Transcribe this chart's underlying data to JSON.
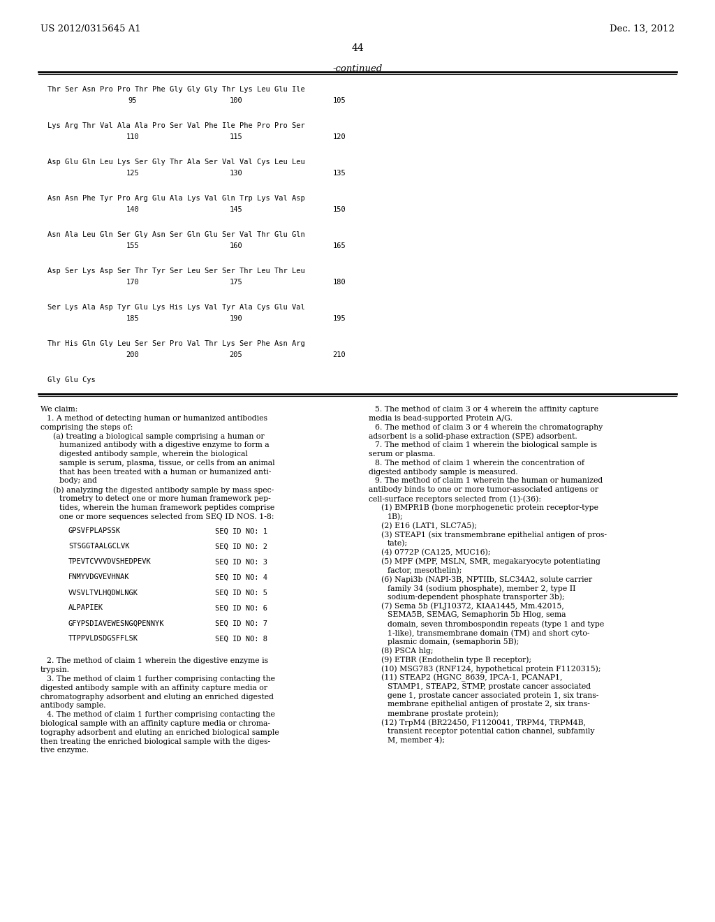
{
  "background_color": "#ffffff",
  "header_left": "US 2012/0315645 A1",
  "header_right": "Dec. 13, 2012",
  "page_number": "44",
  "continued_label": "-continued",
  "sequence_lines": [
    [
      "Thr Ser Asn Pro Pro Thr Phe Gly Gly Gly Thr Lys Leu Glu Ile",
      "95",
      "100",
      "105"
    ],
    [
      "Lys Arg Thr Val Ala Ala Pro Ser Val Phe Ile Phe Pro Pro Ser",
      "110",
      "115",
      "120"
    ],
    [
      "Asp Glu Gln Leu Lys Ser Gly Thr Ala Ser Val Val Cys Leu Leu",
      "125",
      "130",
      "135"
    ],
    [
      "Asn Asn Phe Tyr Pro Arg Glu Ala Lys Val Gln Trp Lys Val Asp",
      "140",
      "145",
      "150"
    ],
    [
      "Asn Ala Leu Gln Ser Gly Asn Ser Gln Glu Ser Val Thr Glu Gln",
      "155",
      "160",
      "165"
    ],
    [
      "Asp Ser Lys Asp Ser Thr Tyr Ser Leu Ser Ser Thr Leu Thr Leu",
      "170",
      "175",
      "180"
    ],
    [
      "Ser Lys Ala Asp Tyr Glu Lys His Lys Val Tyr Ala Cys Glu Val",
      "185",
      "190",
      "195"
    ],
    [
      "Thr His Gln Gly Leu Ser Ser Pro Val Thr Lys Ser Phe Asn Arg",
      "200",
      "205",
      "210"
    ],
    [
      "Gly Glu Cys",
      "",
      "",
      ""
    ]
  ],
  "seq_table": [
    [
      "GPSVFPLAPSSK",
      "SEQ ID NO: 1"
    ],
    [
      "STSGGTAALGCLVK",
      "SEQ ID NO: 2"
    ],
    [
      "TPEVTCVVVDVSHEDPEVK",
      "SEQ ID NO: 3"
    ],
    [
      "FNMYVDGVEVHNAK",
      "SEQ ID NO: 4"
    ],
    [
      "VVSVLTVLHQDWLNGK",
      "SEQ ID NO: 5"
    ],
    [
      "ALPAPIEK",
      "SEQ ID NO: 6"
    ],
    [
      "GFYPSDIAVEWESNGQPENNYK",
      "SEQ ID NO: 7"
    ],
    [
      "TTPPVLDSDGSFFLSK",
      "SEQ ID NO: 8"
    ]
  ],
  "claims_left": [
    [
      "indent0",
      "We claim:"
    ],
    [
      "indent1",
      "1. A method of detecting human or humanized antibodies"
    ],
    [
      "indent0",
      "comprising the steps of:"
    ],
    [
      "indent2",
      "(a) treating a biological sample comprising a human or"
    ],
    [
      "indent3",
      "humanized antibody with a digestive enzyme to form a"
    ],
    [
      "indent3",
      "digested antibody sample, wherein the biological"
    ],
    [
      "indent3",
      "sample is serum, plasma, tissue, or cells from an animal"
    ],
    [
      "indent3",
      "that has been treated with a human or humanized anti-"
    ],
    [
      "indent3",
      "body; and"
    ],
    [
      "indent2",
      "(b) analyzing the digested antibody sample by mass spec-"
    ],
    [
      "indent3",
      "trometry to detect one or more human framework pep-"
    ],
    [
      "indent3",
      "tides, wherein the human framework peptides comprise"
    ],
    [
      "indent3",
      "one or more sequences selected from SEQ ID NOS. 1-8:"
    ]
  ],
  "claims_bottom_left": [
    [
      "indent1",
      "2. The method of claim 1 wherein the digestive enzyme is"
    ],
    [
      "indent0",
      "trypsin."
    ],
    [
      "indent1",
      "3. The method of claim 1 further comprising contacting the"
    ],
    [
      "indent0",
      "digested antibody sample with an affinity capture media or"
    ],
    [
      "indent0",
      "chromatography adsorbent and eluting an enriched digested"
    ],
    [
      "indent0",
      "antibody sample."
    ],
    [
      "indent1",
      "4. The method of claim 1 further comprising contacting the"
    ],
    [
      "indent0",
      "biological sample with an affinity capture media or chroma-"
    ],
    [
      "indent0",
      "tography adsorbent and eluting an enriched biological sample"
    ],
    [
      "indent0",
      "then treating the enriched biological sample with the diges-"
    ],
    [
      "indent0",
      "tive enzyme."
    ]
  ],
  "claims_right": [
    [
      "indent1",
      "5. The method of claim 3 or 4 wherein the affinity capture"
    ],
    [
      "indent0",
      "media is bead-supported Protein A/G."
    ],
    [
      "indent1",
      "6. The method of claim 3 or 4 wherein the chromatography"
    ],
    [
      "indent0",
      "adsorbent is a solid-phase extraction (SPE) adsorbent."
    ],
    [
      "indent1",
      "7. The method of claim 1 wherein the biological sample is"
    ],
    [
      "indent0",
      "serum or plasma."
    ],
    [
      "indent1",
      "8. The method of claim 1 wherein the concentration of"
    ],
    [
      "indent0",
      "digested antibody sample is measured."
    ],
    [
      "indent1",
      "9. The method of claim 1 wherein the human or humanized"
    ],
    [
      "indent0",
      "antibody binds to one or more tumor-associated antigens or"
    ],
    [
      "indent0",
      "cell-surface receptors selected from (1)-(36):"
    ],
    [
      "indent2",
      "(1) BMPR1B (bone morphogenetic protein receptor-type"
    ],
    [
      "indent3",
      "1B);"
    ],
    [
      "indent2",
      "(2) E16 (LAT1, SLC7A5);"
    ],
    [
      "indent2",
      "(3) STEAP1 (six transmembrane epithelial antigen of pros-"
    ],
    [
      "indent3",
      "tate);"
    ],
    [
      "indent2",
      "(4) 0772P (CA125, MUC16);"
    ],
    [
      "indent2",
      "(5) MPF (MPF, MSLN, SMR, megakaryocyte potentiating"
    ],
    [
      "indent3",
      "factor, mesothelin);"
    ],
    [
      "indent2",
      "(6) Napi3b (NAPI-3B, NPTIIb, SLC34A2, solute carrier"
    ],
    [
      "indent3",
      "family 34 (sodium phosphate), member 2, type II"
    ],
    [
      "indent3",
      "sodium-dependent phosphate transporter 3b);"
    ],
    [
      "indent2",
      "(7) Sema 5b (FLJ10372, KIAA1445, Mm.42015,"
    ],
    [
      "indent3",
      "SEMA5B, SEMAG, Semaphorin 5b Hlog, sema"
    ],
    [
      "indent3",
      "domain, seven thrombospondin repeats (type 1 and type"
    ],
    [
      "indent3",
      "1-like), transmembrane domain (TM) and short cyto-"
    ],
    [
      "indent3",
      "plasmic domain, (semaphorin 5B);"
    ],
    [
      "indent2",
      "(8) PSCA hlg;"
    ],
    [
      "indent2",
      "(9) ETBR (Endothelin type B receptor);"
    ],
    [
      "indent2",
      "(10) MSG783 (RNF124, hypothetical protein F1120315);"
    ],
    [
      "indent2",
      "(11) STEAP2 (HGNC_8639, IPCA-1, PCANAP1,"
    ],
    [
      "indent3",
      "STAMP1, STEAP2, STMP, prostate cancer associated"
    ],
    [
      "indent3",
      "gene 1, prostate cancer associated protein 1, six trans-"
    ],
    [
      "indent3",
      "membrane epithelial antigen of prostate 2, six trans-"
    ],
    [
      "indent3",
      "membrane prostate protein);"
    ],
    [
      "indent2",
      "(12) TrpM4 (BR22450, F1120041, TRPM4, TRPM4B,"
    ],
    [
      "indent3",
      "transient receptor potential cation channel, subfamily"
    ],
    [
      "indent3",
      "M, member 4);"
    ]
  ],
  "indent_levels": {
    "indent0": 0,
    "indent1": 9,
    "indent2": 18,
    "indent3": 27
  }
}
